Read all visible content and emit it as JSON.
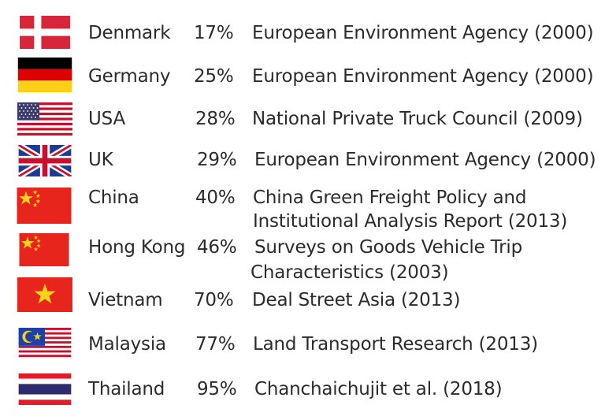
{
  "rows": [
    {
      "country": "Denmark",
      "percent": "17%",
      "source": [
        "European Environment Agency (2000)"
      ],
      "flag_icon": "denmark-flag-icon"
    },
    {
      "country": "Germany",
      "percent": "25%",
      "source": [
        "European Environment Agency (2000)"
      ],
      "flag_icon": "germany-flag-icon"
    },
    {
      "country": "USA",
      "percent": "28%",
      "source": [
        "National Private Truck Council (2009)"
      ],
      "flag_icon": "usa-flag-icon"
    },
    {
      "country": "UK",
      "percent": "29%",
      "source": [
        "European Environment Agency (2000)"
      ],
      "flag_icon": "uk-flag-icon"
    },
    {
      "country": "China",
      "percent": "40%",
      "source": [
        "China Green Freight Policy and",
        "Institutional Analysis Report (2013)"
      ],
      "flag_icon": "china-flag-icon"
    },
    {
      "country": "Hong Kong",
      "percent": "46%",
      "source": [
        "Surveys on Goods Vehicle Trip",
        "Characteristics (2003)"
      ],
      "flag_icon": "china-flag-icon"
    },
    {
      "country": "Vietnam",
      "percent": "70%",
      "source": [
        "Deal Street Asia (2013)"
      ],
      "flag_icon": "vietnam-flag-icon"
    },
    {
      "country": "Malaysia",
      "percent": "77%",
      "source": [
        "Land Transport Research (2013)"
      ],
      "flag_icon": "malaysia-flag-icon"
    },
    {
      "country": "Thailand",
      "percent": "95%",
      "source": [
        "Chanchaichujit et al. (2018)"
      ],
      "flag_icon": "thailand-flag-icon"
    }
  ],
  "colors": {
    "text": "#2b2b2b",
    "danish_red": "#d7263a",
    "german_gold": "#fcd116",
    "us_blue": "#3c3b6e",
    "us_red": "#c8102e",
    "uk_blue": "#1f3a93",
    "china_red": "#e8251d",
    "china_star": "#f7d417",
    "malaysia_blue": "#1e40a8",
    "thai_blue": "#2d2a6e",
    "thai_red": "#e21c2b"
  }
}
